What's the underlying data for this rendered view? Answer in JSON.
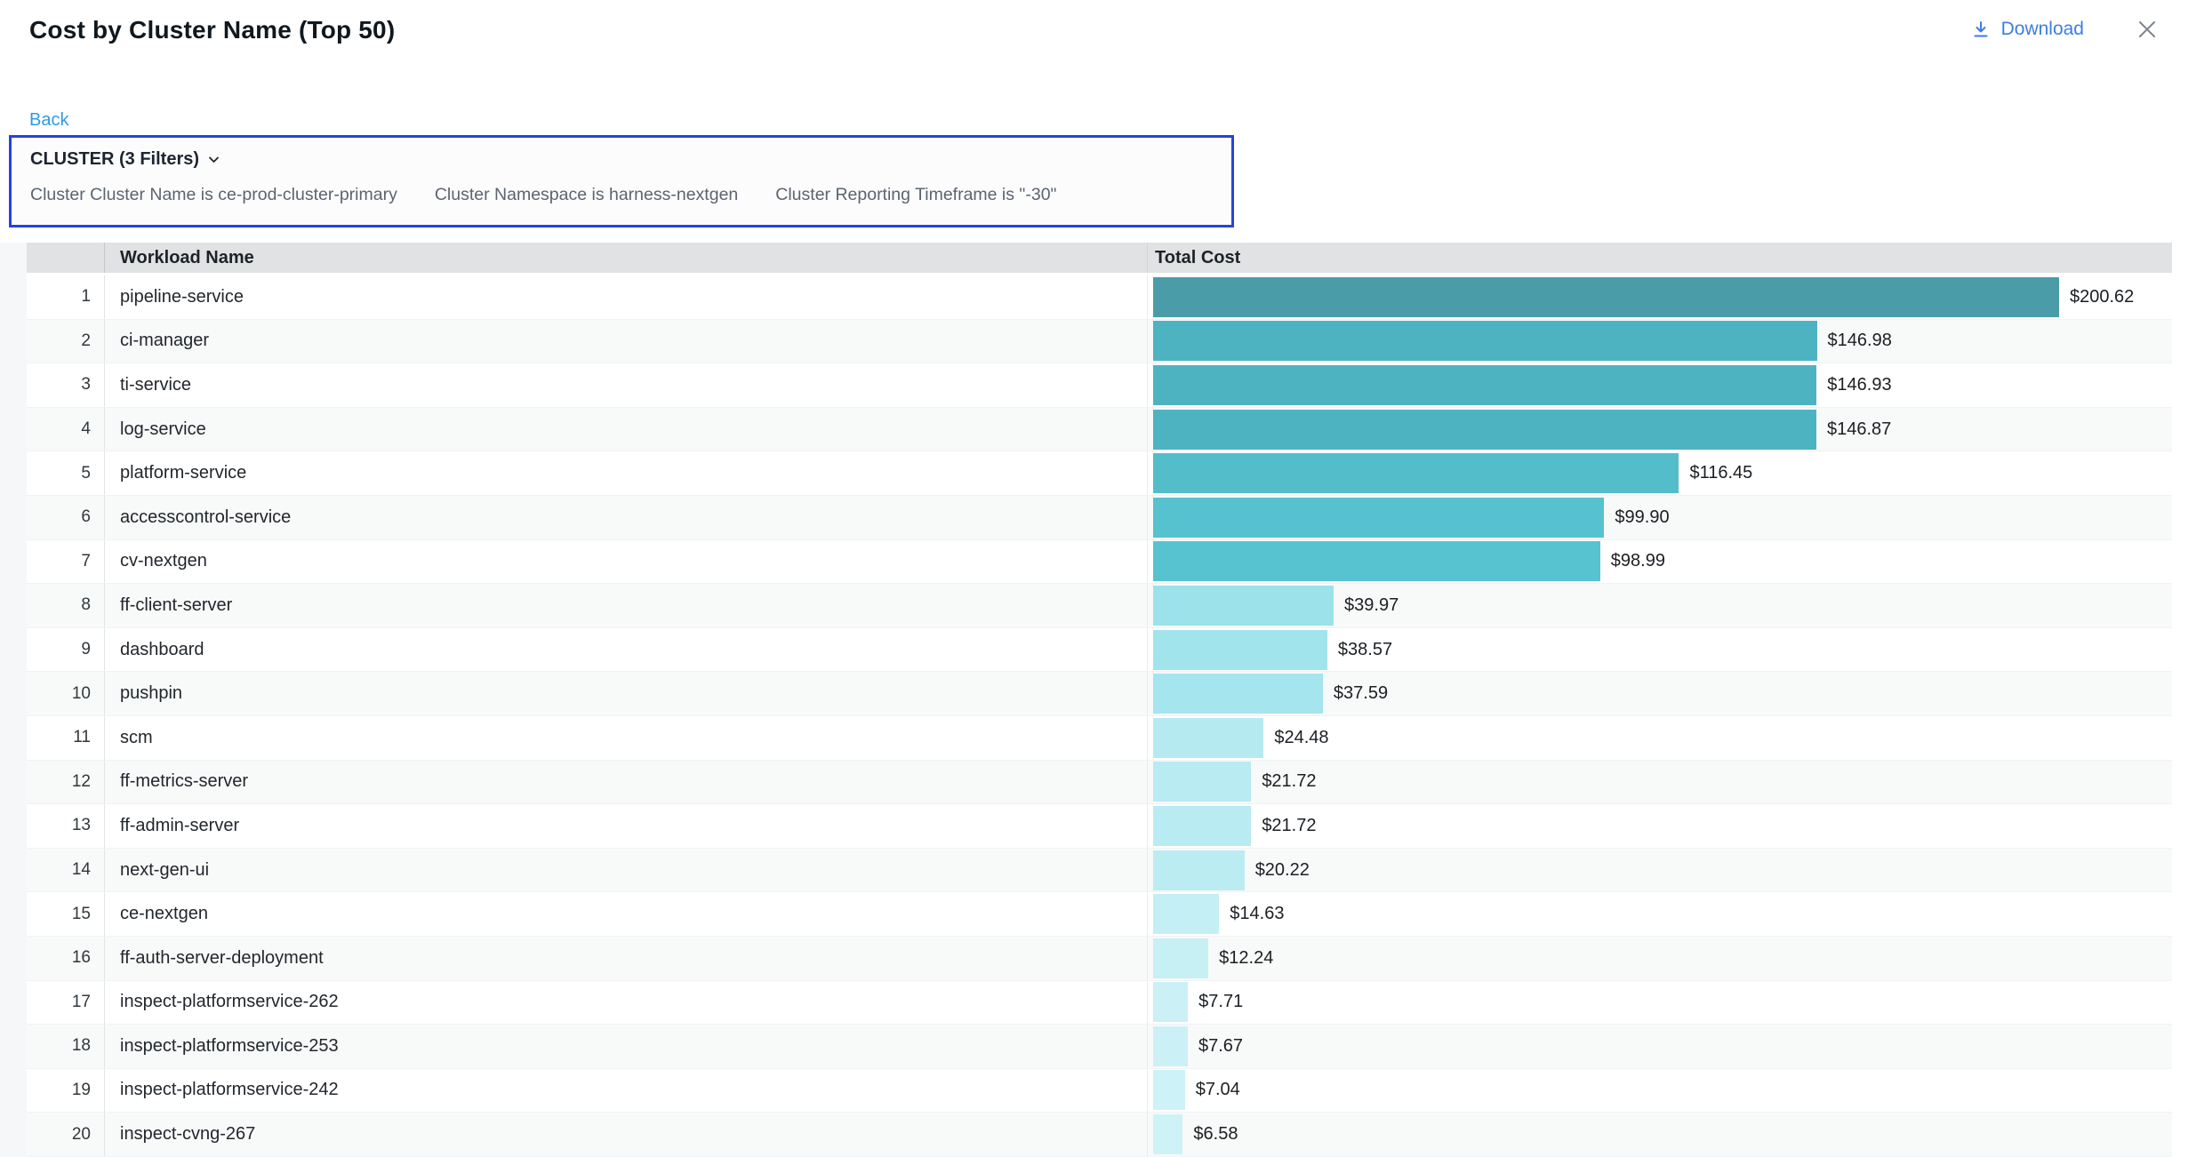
{
  "header": {
    "title": "Cost by Cluster Name (Top 50)",
    "download_label": "Download"
  },
  "back_label": "Back",
  "filter_panel": {
    "summary": "CLUSTER (3 Filters)",
    "filters": [
      "Cluster Cluster Name is ce-prod-cluster-primary",
      "Cluster Namespace is harness-nextgen",
      "Cluster Reporting Timeframe is \"-30\""
    ]
  },
  "table": {
    "name_header": "Workload Name",
    "cost_header": "Total Cost"
  },
  "colors": {
    "accent_blue": "#3d7de5",
    "back_link_blue": "#2f9be4",
    "filter_border_blue": "#2743d9",
    "header_gray": "#e1e2e4",
    "bar_teal_dark": "#4a9ca8",
    "bar_teal_light": "#cef3f7"
  },
  "chart_data": {
    "type": "bar",
    "orientation": "horizontal",
    "title": "Cost by Cluster Name (Top 50)",
    "category_label": "Workload Name",
    "value_label": "Total Cost",
    "value_unit": "USD",
    "x_max": 200.62,
    "ranks": [
      1,
      2,
      3,
      4,
      5,
      6,
      7,
      8,
      9,
      10,
      11,
      12,
      13,
      14,
      15,
      16,
      17,
      18,
      19,
      20
    ],
    "categories": [
      "pipeline-service",
      "ci-manager",
      "ti-service",
      "log-service",
      "platform-service",
      "accesscontrol-service",
      "cv-nextgen",
      "ff-client-server",
      "dashboard",
      "pushpin",
      "scm",
      "ff-metrics-server",
      "ff-admin-server",
      "next-gen-ui",
      "ce-nextgen",
      "ff-auth-server-deployment",
      "inspect-platformservice-262",
      "inspect-platformservice-253",
      "inspect-platformservice-242",
      "inspect-cvng-267"
    ],
    "values": [
      200.62,
      146.98,
      146.93,
      146.87,
      116.45,
      99.9,
      98.99,
      39.97,
      38.57,
      37.59,
      24.48,
      21.72,
      21.72,
      20.22,
      14.63,
      12.24,
      7.71,
      7.67,
      7.04,
      6.58
    ],
    "value_labels": [
      "$200.62",
      "$146.98",
      "$146.93",
      "$146.87",
      "$116.45",
      "$99.90",
      "$98.99",
      "$39.97",
      "$38.57",
      "$37.59",
      "$24.48",
      "$21.72",
      "$21.72",
      "$20.22",
      "$14.63",
      "$12.24",
      "$7.71",
      "$7.67",
      "$7.04",
      "$6.58"
    ],
    "bar_colors": [
      "#4a9ca8",
      "#4eb3c1",
      "#4eb3c1",
      "#4eb3c1",
      "#53bdca",
      "#56c2d0",
      "#57c3d1",
      "#9ce2ea",
      "#a2e4ec",
      "#a5e5ed",
      "#b5eaf1",
      "#b9ebf2",
      "#b9ebf2",
      "#bbecf2",
      "#c4eff4",
      "#c7f0f5",
      "#cbf1f6",
      "#cbf1f6",
      "#cdf2f7",
      "#cef3f7"
    ]
  }
}
